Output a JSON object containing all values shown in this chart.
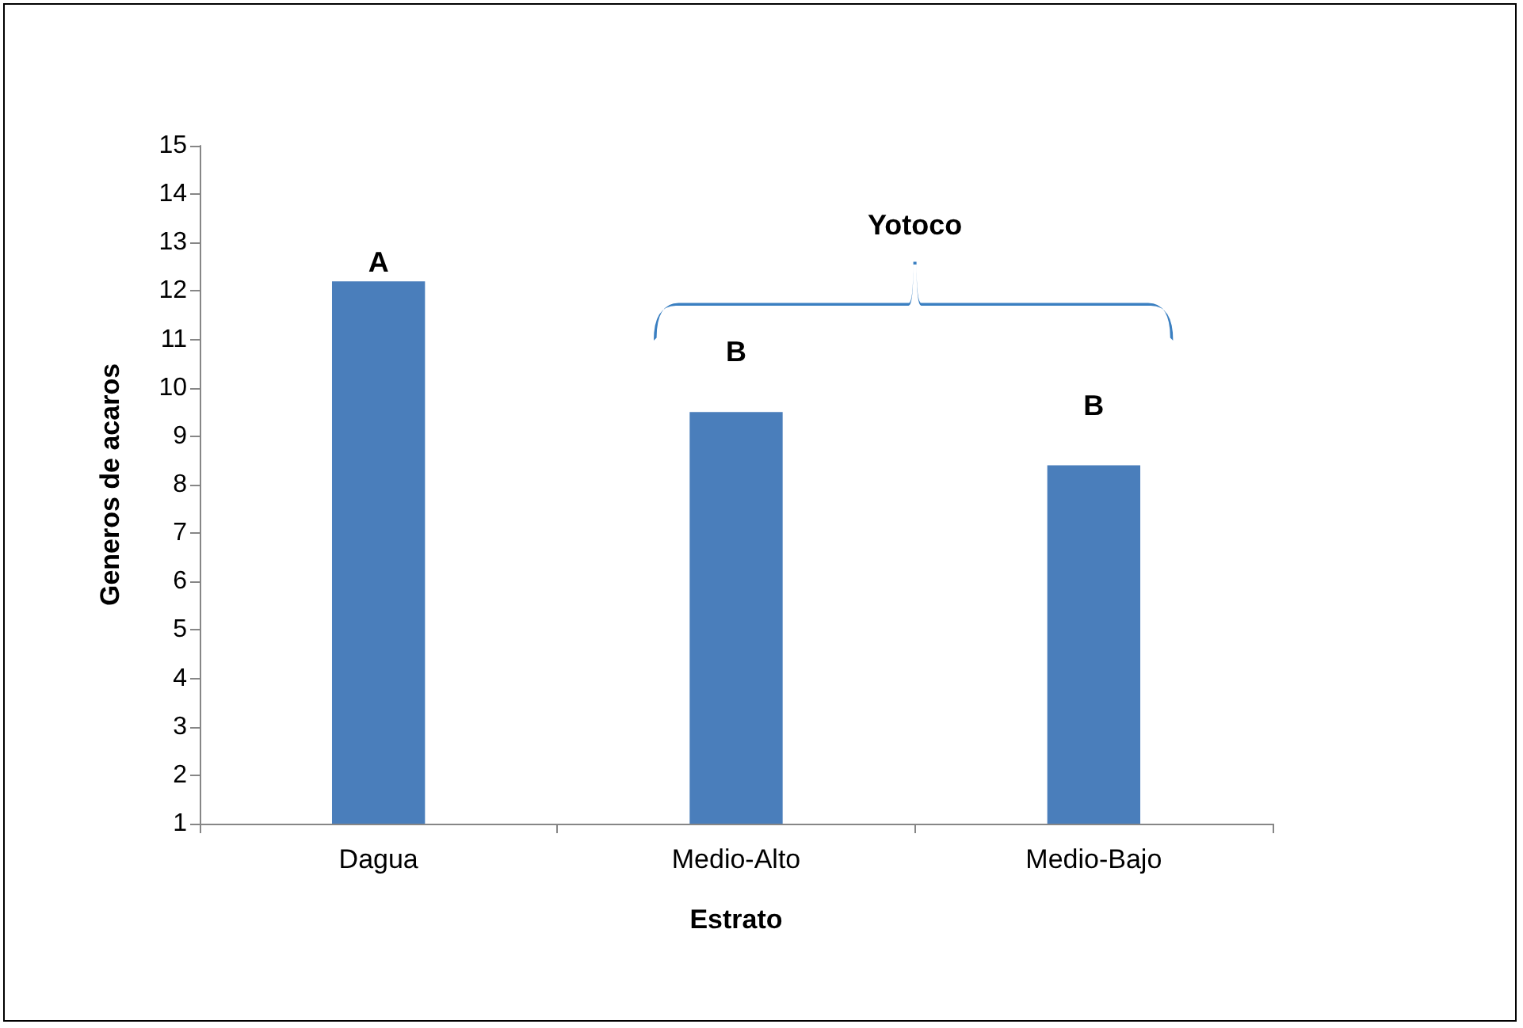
{
  "chart_data": {
    "type": "bar",
    "xlabel": "Estrato",
    "ylabel": "Generos de acaros",
    "categories": [
      "Dagua",
      "Medio-Alto",
      "Medio-Bajo"
    ],
    "values": [
      12.2,
      9.5,
      8.4
    ],
    "color": "#4a7ebb",
    "ylim": [
      1,
      15
    ],
    "yticks": [
      1,
      2,
      3,
      4,
      5,
      6,
      7,
      8,
      9,
      10,
      11,
      12,
      13,
      14,
      15
    ],
    "grid": false,
    "annotations": [
      "A",
      "B",
      "B",
      "Yotoco"
    ]
  }
}
